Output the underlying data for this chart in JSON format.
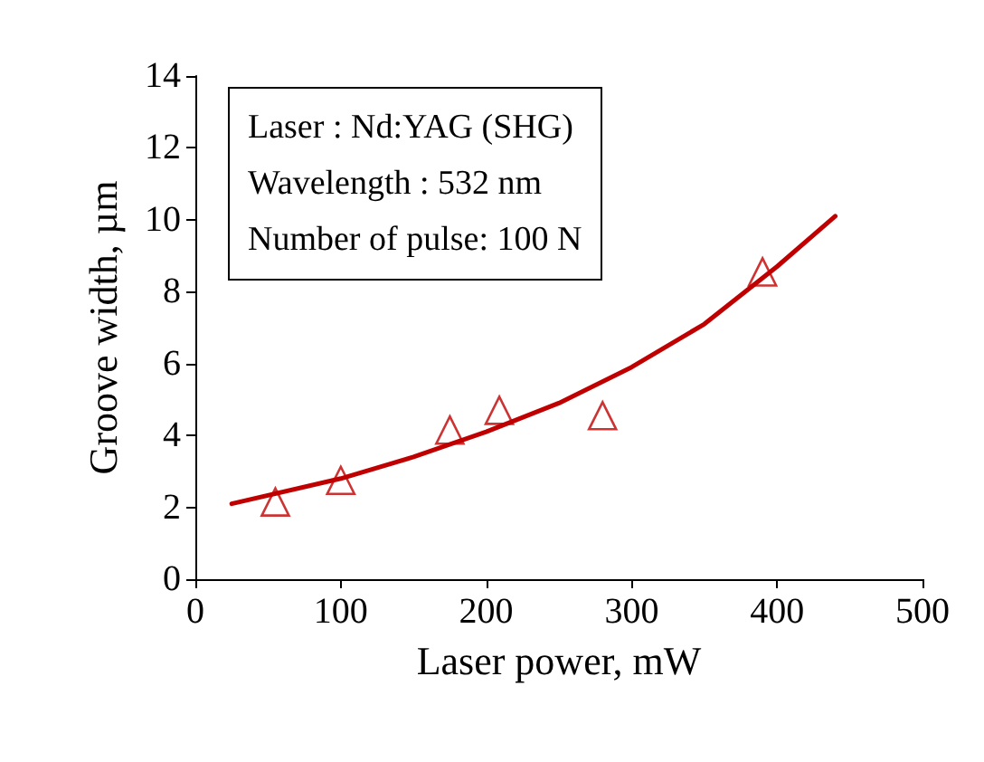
{
  "chart_data": {
    "type": "scatter",
    "xlabel": "Laser power, mW",
    "ylabel": "Groove width, µm",
    "annotations": [
      "Laser : Nd:YAG (SHG)",
      "Wavelength : 532 nm",
      "Number of pulse: 100 N"
    ],
    "xlim": [
      0,
      500
    ],
    "xticks": [
      0,
      100,
      200,
      300,
      400,
      500
    ],
    "ylim": [
      0,
      14
    ],
    "yticks": [
      0,
      2,
      4,
      6,
      8,
      10,
      12,
      14
    ],
    "grid": false,
    "series": [
      {
        "color": "#c00000",
        "marker": "triangle",
        "x": [
          55,
          100,
          175,
          209,
          280,
          390
        ],
        "values": [
          2.15,
          2.75,
          4.15,
          4.7,
          4.55,
          8.55
        ]
      },
      {
        "type": "line",
        "color": "#c00000",
        "marker": "none",
        "line_style": "solid",
        "x": [
          25,
          100,
          150,
          200,
          250,
          300,
          350,
          400,
          440
        ],
        "values": [
          2.1,
          2.8,
          3.4,
          4.1,
          4.9,
          5.9,
          7.1,
          8.7,
          10.1
        ]
      }
    ]
  }
}
